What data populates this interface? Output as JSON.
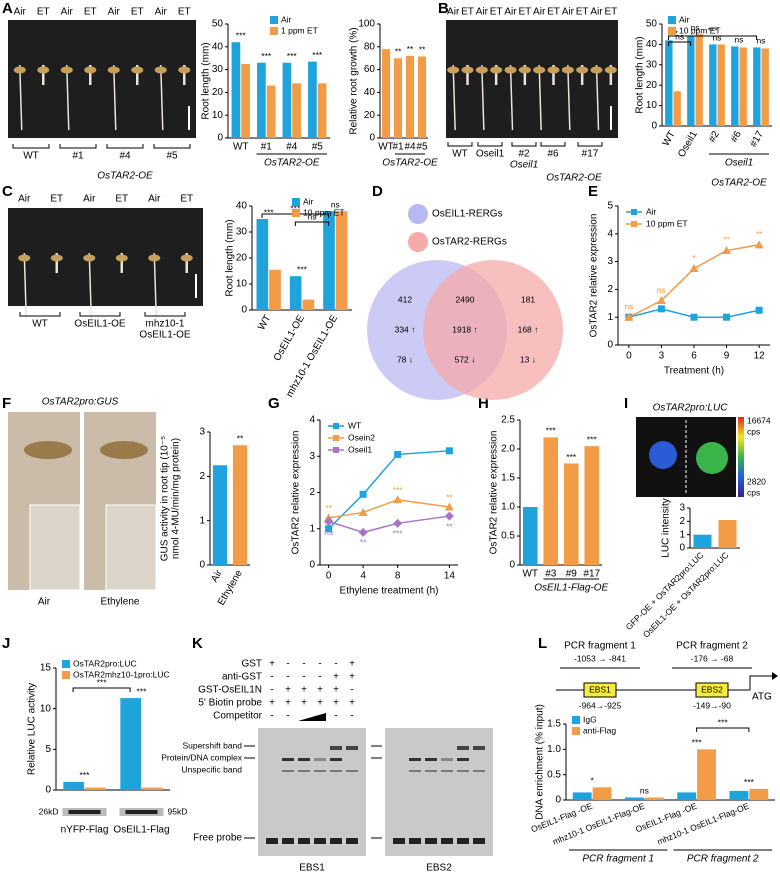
{
  "panel_letters": [
    "A",
    "B",
    "C",
    "D",
    "E",
    "F",
    "G",
    "H",
    "I",
    "J",
    "K",
    "L"
  ],
  "photos": [
    {
      "top": [
        "Air",
        "ET",
        "Air",
        "ET",
        "Air",
        "ET",
        "Air",
        "ET"
      ],
      "groups": [
        "WT",
        "#1",
        "#4",
        "#5"
      ],
      "captions": [
        "OsTAR2-OE"
      ]
    },
    {
      "top": [
        "Air",
        "ET",
        "Air",
        "ET",
        "Air",
        "ET",
        "Air",
        "ET",
        "Air",
        "ET",
        "Air",
        "ET"
      ],
      "groups": [
        "WT",
        "Oseil1",
        "#2",
        "#6",
        "#17"
      ],
      "captions": [
        "Oseil1",
        "OsTAR2-OE"
      ]
    },
    {
      "top": [
        "Air",
        "ET",
        "Air",
        "ET",
        "Air",
        "ET"
      ],
      "groups": [
        "WT",
        "OsEIL1-OE",
        [
          "mhz10-1",
          "OsEIL1-OE"
        ]
      ],
      "captions": []
    }
  ],
  "venn": {
    "sets": [
      {
        "name": "OsEIL1-RERGs",
        "color": "#b9b9f2"
      },
      {
        "name": "OsTAR2-RERGs",
        "color": "#f6a9a9"
      }
    ],
    "regions": [
      [
        "412",
        "334 ↑",
        "78 ↓"
      ],
      [
        "2490",
        "1918 ↑",
        "572 ↓"
      ],
      [
        "181",
        "168 ↑",
        "13 ↓"
      ]
    ]
  },
  "gus": {
    "title": "OsTAR2pro:GUS",
    "labels": [
      "Air",
      "Ethylene"
    ]
  },
  "luc": {
    "title": "OsTAR2pro:LUC",
    "scale_max": "16674",
    "scale_min": "2820",
    "scale_unit": "cps"
  },
  "emsa": {
    "rows": [
      {
        "label": "GST",
        "marks": [
          "+",
          "-",
          "-",
          "-",
          "-",
          "+"
        ]
      },
      {
        "label": "anti-GST",
        "marks": [
          "-",
          "-",
          "-",
          "-",
          "+",
          "+"
        ]
      },
      {
        "label": "GST-OsEIL1N",
        "marks": [
          "-",
          "+",
          "+",
          "+",
          "+",
          "-"
        ]
      },
      {
        "label": "5' Biotin probe",
        "marks": [
          "+",
          "+",
          "+",
          "+",
          "+",
          "+"
        ]
      },
      {
        "label": "Competitor",
        "marks": [
          "-",
          "-",
          null,
          null,
          "-",
          "-"
        ]
      }
    ],
    "bands": [
      "Supershift band",
      "Protein/DNA complex",
      "Unspecific band"
    ],
    "free_probe": "Free probe",
    "probes": [
      "EBS1",
      "EBS2"
    ]
  },
  "promoter": {
    "fragments": [
      {
        "name": "PCR fragment 1",
        "range": "-1053 → -841",
        "site": "EBS1",
        "site_range": "-964→-925"
      },
      {
        "name": "PCR fragment 2",
        "range": "-176 → -68",
        "site": "EBS2",
        "site_range": "-149→-90"
      }
    ],
    "start": "ATG"
  },
  "chart_data": [
    {
      "type": "bar",
      "ylabel": "Root length (mm)",
      "categories": [
        "WT",
        "#1",
        "#4",
        "#5"
      ],
      "series": [
        {
          "name": "Air",
          "color": "#1fa3dd",
          "values": [
            42,
            33,
            33,
            33.5
          ]
        },
        {
          "name": "1 ppm ET",
          "color": "#f39c47",
          "values": [
            32.5,
            23,
            24,
            24
          ]
        }
      ],
      "ylim": [
        0,
        50
      ],
      "yticks": [
        0,
        10,
        20,
        30,
        40,
        50
      ],
      "legend": "top-right",
      "significance": [
        "***",
        "***",
        "***",
        "***"
      ],
      "group_labels": [
        "OsTAR2-OE"
      ],
      "comparisons": []
    },
    {
      "type": "bar",
      "ylabel": "Relative root growth (%)",
      "categories": [
        "WT",
        "#1",
        "#4",
        "#5"
      ],
      "values": [
        78,
        70,
        72,
        71.5
      ],
      "color": "#f39c47",
      "ylim": [
        0,
        100
      ],
      "yticks": [
        0,
        20,
        40,
        60,
        80,
        100
      ],
      "significance": [
        null,
        "**",
        "**",
        "**"
      ],
      "group_labels": [
        "OsTAR2-OE"
      ],
      "comparisons": []
    },
    {
      "type": "bar",
      "ylabel": "Root length (mm)",
      "categories": [
        "WT",
        "Oseil1",
        "#2",
        "#6",
        "#17"
      ],
      "series": [
        {
          "name": "Air",
          "color": "#1fa3dd",
          "values": [
            42,
            44,
            40,
            39,
            38.5
          ]
        },
        {
          "name": "10 ppm ET",
          "color": "#f39c47",
          "values": [
            17,
            45,
            40,
            38.5,
            38
          ]
        }
      ],
      "ylim": [
        0,
        50
      ],
      "yticks": [
        0,
        10,
        20,
        30,
        40,
        50
      ],
      "legend": "top-left",
      "significance": [
        "***",
        "ns",
        "ns",
        "ns",
        "ns"
      ],
      "group_labels": [
        "Oseil1",
        "OsTAR2-OE"
      ],
      "comparisons": [
        "ns",
        "***"
      ]
    },
    {
      "type": "bar",
      "ylabel": "Root length (mm)",
      "categories": [
        "WT",
        "OsEIL1-OE",
        "mhz10-1 OsEIL1-OE"
      ],
      "series": [
        {
          "name": "Air",
          "color": "#1fa3dd",
          "values": [
            35,
            13,
            38
          ]
        },
        {
          "name": "10 ppm ET",
          "color": "#f39c47",
          "values": [
            15.5,
            4,
            38
          ]
        }
      ],
      "ylim": [
        0,
        40
      ],
      "yticks": [
        0,
        10,
        20,
        30,
        40
      ],
      "legend": "top-right",
      "significance": [
        "***",
        "***",
        "ns"
      ],
      "group_labels": [],
      "comparisons": [
        "***",
        "ns"
      ]
    },
    {
      "type": "line",
      "ylabel": "OsTAR2 relative expression",
      "xlabel": "Treatment (h)",
      "x": [
        0,
        3,
        6,
        9,
        12
      ],
      "series": [
        {
          "name": "Air",
          "color": "#1fa3dd",
          "marker": "square",
          "values": [
            1,
            1.3,
            1,
            1,
            1.25
          ]
        },
        {
          "name": "10 ppm ET",
          "color": "#f39c47",
          "marker": "triangle",
          "values": [
            1,
            1.6,
            2.75,
            3.4,
            3.6
          ],
          "significance": [
            "ns",
            "ns",
            "*",
            "**",
            "**"
          ]
        }
      ],
      "xlim": [
        -1,
        13
      ],
      "xticks": [
        0,
        3,
        6,
        9,
        12
      ],
      "ylim": [
        0,
        5
      ],
      "yticks": [
        0,
        1,
        2,
        3,
        4,
        5
      ],
      "legend": "top-left"
    },
    {
      "type": "bar",
      "ylabel": [
        "GUS activity in root tip (10⁻⁵",
        "nmol 4-MU/min/mg protein)"
      ],
      "categories": [
        "Air",
        "Ethylene"
      ],
      "values": [
        2.25,
        2.7
      ],
      "colors": [
        "#1fa3dd",
        "#f39c47"
      ],
      "ylim": [
        0,
        3
      ],
      "yticks": [
        0,
        1,
        2,
        3
      ],
      "significance": [
        null,
        "**"
      ],
      "group_labels": [],
      "comparisons": []
    },
    {
      "type": "line",
      "ylabel": "OsTAR2 relative expression",
      "xlabel": "Ethylene treatment (h)",
      "x": [
        0,
        4,
        8,
        14
      ],
      "series": [
        {
          "name": "WT",
          "color": "#1fa3dd",
          "marker": "square",
          "values": [
            1,
            1.95,
            3.05,
            3.15
          ]
        },
        {
          "name": "Osein2",
          "color": "#f39c47",
          "marker": "triangle",
          "values": [
            1.3,
            1.45,
            1.8,
            1.6
          ],
          "significance": [
            "**",
            null,
            "***",
            "**"
          ]
        },
        {
          "name": "Oseil1",
          "color": "#a774c8",
          "marker": "diamond",
          "values": [
            1.2,
            0.9,
            1.15,
            1.35
          ],
          "significance": [
            "ns",
            "**",
            "***",
            "**"
          ]
        }
      ],
      "xlim": [
        -1,
        15
      ],
      "xticks": [
        0,
        4,
        8,
        14
      ],
      "ylim": [
        0,
        4
      ],
      "yticks": [
        0,
        1,
        2,
        3,
        4
      ],
      "legend": "top-left"
    },
    {
      "type": "bar",
      "ylabel": "OsTAR2 relative expression",
      "categories": [
        "WT",
        "#3",
        "#9",
        "#17"
      ],
      "values": [
        1,
        2.2,
        1.75,
        2.05
      ],
      "colors": [
        "#1fa3dd",
        "#f39c47",
        "#f39c47",
        "#f39c47"
      ],
      "ylim": [
        0,
        2.5
      ],
      "yticks": [
        0,
        0.5,
        {
          "value": 1,
          "label": "1.0"
        },
        1.5,
        {
          "value": 2,
          "label": "2.0"
        },
        2.5
      ],
      "significance": [
        null,
        "***",
        "***",
        "***"
      ],
      "group_labels": [
        "OsEIL1-Flag-OE"
      ],
      "comparisons": []
    },
    {
      "type": "bar",
      "ylabel": "LUC intensity",
      "categories": [
        "GFP-OE + OsTAR2pro:LUC",
        "OsEIL1-OE + OsTAR2pro:LUC"
      ],
      "values": [
        1,
        2.1
      ],
      "colors": [
        "#1fa3dd",
        "#f39c47"
      ],
      "ylim": [
        0,
        3
      ],
      "yticks": [
        0,
        1,
        2,
        3
      ],
      "significance": [],
      "group_labels": [],
      "comparisons": []
    },
    {
      "type": "bar",
      "ylabel": "Relative LUC activity",
      "categories": [
        "nYFP-Flag",
        "OsEIL1-Flag"
      ],
      "series": [
        {
          "name": "OsTAR2pro:LUC",
          "color": "#1fa3dd",
          "values": [
            1,
            11.3
          ]
        },
        {
          "name": "OsTAR2mhz10-1pro:LUC",
          "color": "#f39c47",
          "values": [
            0.3,
            0.3
          ]
        }
      ],
      "ylim": [
        0,
        15
      ],
      "yticks": [
        0,
        5,
        10,
        15
      ],
      "legend": "top-left",
      "significance": [
        "***",
        "***"
      ],
      "group_labels": [],
      "comparisons": [
        "***"
      ],
      "blot_labels": [
        "26kD",
        "95kD"
      ]
    },
    {
      "type": "bar",
      "ylabel": "DNA enrichment (% input)",
      "categories": [
        "OsEIL1-Flag -OE",
        "mhz10-1 OsEIL1-Flag-OE",
        "OsEIL1-Flag -OE",
        "mhz10-1 OsEIL1-Flag-OE"
      ],
      "series": [
        {
          "name": "IgG",
          "color": "#1fa3dd",
          "values": [
            0.15,
            0.05,
            0.15,
            0.18
          ]
        },
        {
          "name": "anti-Flag",
          "color": "#f39c47",
          "values": [
            0.25,
            0.05,
            1.0,
            0.22
          ]
        }
      ],
      "ylim": [
        0,
        1.5
      ],
      "yticks": [
        0,
        0.5,
        {
          "value": 1,
          "label": "1.0"
        },
        1.5
      ],
      "legend": "top-left",
      "significance": [
        "*",
        "ns",
        "***",
        "***"
      ],
      "group_labels": [
        "PCR fragment 1",
        "PCR fragment 2"
      ],
      "comparisons": [
        "***"
      ]
    }
  ]
}
